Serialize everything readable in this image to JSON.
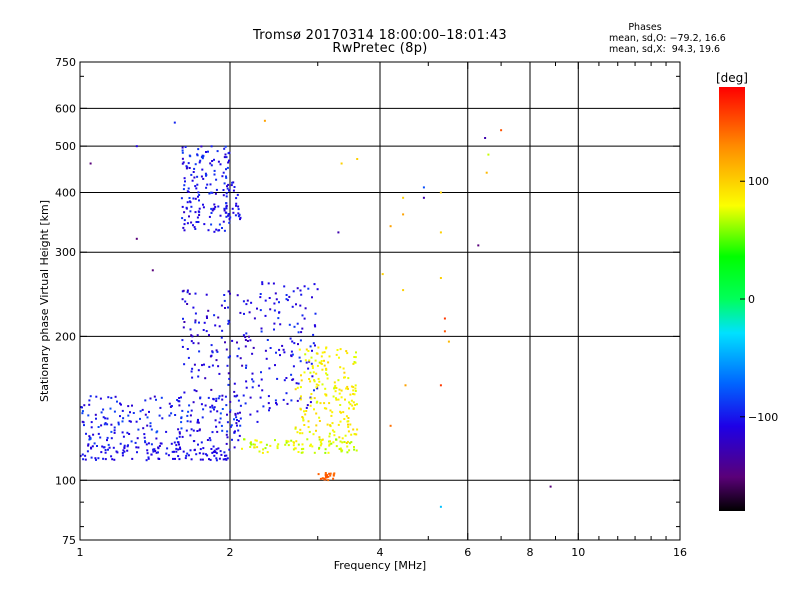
{
  "header": {
    "title_line1": "Tromsø 20170314 18:00:00–18:01:43",
    "title_line2": "RwPretec (8p)"
  },
  "info": {
    "heading": "Phases",
    "line_o": "mean, sd,O: −79.2, 16.6",
    "line_x": "mean, sd,X:  94.3, 19.6"
  },
  "colorbar": {
    "label": "[deg]",
    "ticks": [
      "100",
      "0",
      "−100"
    ],
    "tick_values": [
      100,
      0,
      -100
    ],
    "range": [
      -180,
      180
    ]
  },
  "chart_data": {
    "type": "scatter",
    "title": "Tromsø 20170314 18:00:00–18:01:43",
    "subtitle": "RwPretec (8p)",
    "xlabel": "Frequency [MHz]",
    "ylabel": "Stationary phase Virtual Height [km]",
    "x_scale": "log",
    "y_scale": "log",
    "xlim": [
      1,
      16
    ],
    "ylim": [
      75,
      750
    ],
    "x_ticks": [
      1,
      2,
      4,
      6,
      8,
      10,
      16
    ],
    "x_tick_labels": [
      "1",
      "2",
      "4",
      "6",
      "8",
      "10",
      "16"
    ],
    "y_ticks": [
      75,
      100,
      200,
      300,
      400,
      500,
      600,
      750
    ],
    "y_tick_labels": [
      "75",
      "100",
      "200",
      "300",
      "400",
      "500",
      "600",
      "750"
    ],
    "grid": true,
    "color_variable": "phase [deg]",
    "regions": [
      {
        "x": [
          1.0,
          2.05
        ],
        "y": [
          110,
          118
        ],
        "phase": [
          -115,
          -95
        ],
        "count": 120
      },
      {
        "x": [
          1.0,
          2.1
        ],
        "y": [
          118,
          150
        ],
        "phase": [
          -120,
          -80
        ],
        "count": 220
      },
      {
        "x": [
          1.6,
          2.3
        ],
        "y": [
          130,
          250
        ],
        "phase": [
          -130,
          -90
        ],
        "count": 150
      },
      {
        "x": [
          2.3,
          3.0
        ],
        "y": [
          140,
          260
        ],
        "phase": [
          -120,
          -85
        ],
        "count": 120
      },
      {
        "x": [
          2.1,
          3.6
        ],
        "y": [
          114,
          122
        ],
        "phase": [
          60,
          90
        ],
        "count": 80
      },
      {
        "x": [
          2.7,
          3.6
        ],
        "y": [
          118,
          190
        ],
        "phase": [
          70,
          100
        ],
        "count": 200
      },
      {
        "x": [
          1.6,
          2.0
        ],
        "y": [
          330,
          500
        ],
        "phase": [
          -120,
          -85
        ],
        "count": 160
      },
      {
        "x": [
          1.95,
          2.1
        ],
        "y": [
          350,
          420
        ],
        "phase": [
          -120,
          -90
        ],
        "count": 30
      },
      {
        "x": [
          3.0,
          3.25
        ],
        "y": [
          100,
          104
        ],
        "phase": [
          140,
          150
        ],
        "count": 22
      }
    ],
    "points": [
      {
        "x": 1.05,
        "y": 460,
        "phase": -150
      },
      {
        "x": 1.3,
        "y": 320,
        "phase": -150
      },
      {
        "x": 1.4,
        "y": 275,
        "phase": -150
      },
      {
        "x": 1.3,
        "y": 500,
        "phase": -110
      },
      {
        "x": 1.55,
        "y": 560,
        "phase": -95
      },
      {
        "x": 2.35,
        "y": 565,
        "phase": 120
      },
      {
        "x": 6.5,
        "y": 520,
        "phase": -130
      },
      {
        "x": 7.0,
        "y": 540,
        "phase": 150
      },
      {
        "x": 6.6,
        "y": 480,
        "phase": 70
      },
      {
        "x": 6.55,
        "y": 440,
        "phase": 110
      },
      {
        "x": 6.3,
        "y": 310,
        "phase": -150
      },
      {
        "x": 4.9,
        "y": 410,
        "phase": -80
      },
      {
        "x": 4.9,
        "y": 390,
        "phase": -130
      },
      {
        "x": 4.45,
        "y": 390,
        "phase": 100
      },
      {
        "x": 4.45,
        "y": 360,
        "phase": 120
      },
      {
        "x": 5.3,
        "y": 400,
        "phase": 100
      },
      {
        "x": 4.2,
        "y": 340,
        "phase": 120
      },
      {
        "x": 5.3,
        "y": 330,
        "phase": 100
      },
      {
        "x": 4.05,
        "y": 270,
        "phase": 100
      },
      {
        "x": 4.45,
        "y": 250,
        "phase": 100
      },
      {
        "x": 5.3,
        "y": 265,
        "phase": 100
      },
      {
        "x": 5.4,
        "y": 218,
        "phase": 160
      },
      {
        "x": 5.4,
        "y": 205,
        "phase": 150
      },
      {
        "x": 5.5,
        "y": 195,
        "phase": 110
      },
      {
        "x": 5.3,
        "y": 158,
        "phase": 160
      },
      {
        "x": 4.5,
        "y": 158,
        "phase": 120
      },
      {
        "x": 4.2,
        "y": 130,
        "phase": 140
      },
      {
        "x": 5.3,
        "y": 88,
        "phase": -40
      },
      {
        "x": 8.8,
        "y": 97,
        "phase": -150
      },
      {
        "x": 3.3,
        "y": 330,
        "phase": -130
      },
      {
        "x": 3.6,
        "y": 470,
        "phase": 100
      },
      {
        "x": 3.35,
        "y": 460,
        "phase": 100
      }
    ]
  }
}
